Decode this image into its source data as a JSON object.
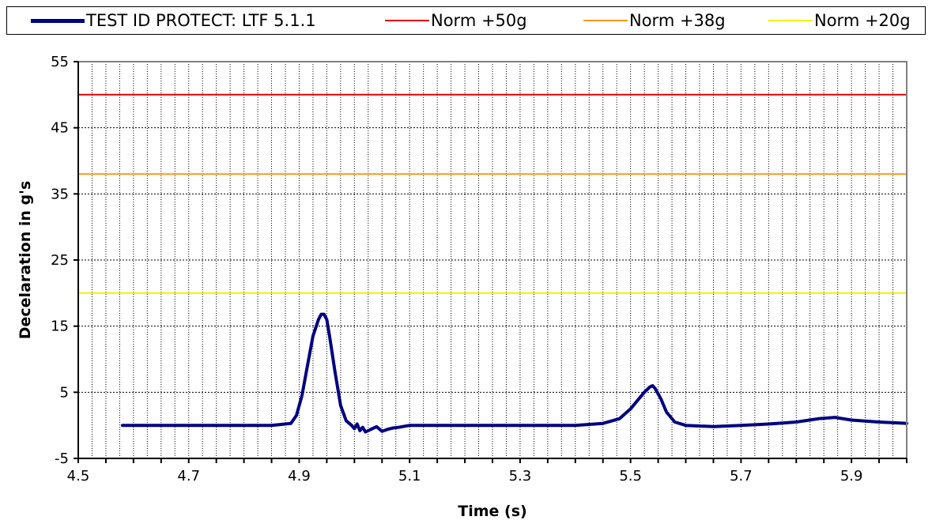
{
  "chart_data": {
    "type": "line",
    "xlabel": "Time (s)",
    "ylabel": "Decelaration in g's",
    "xlim": [
      4.5,
      6.0
    ],
    "ylim": [
      -5,
      55
    ],
    "x_ticks": [
      "4.5",
      "4.7",
      "4.9",
      "5.1",
      "5.3",
      "5.5",
      "5.7",
      "5.9"
    ],
    "x_tick_values": [
      4.5,
      4.7,
      4.9,
      5.1,
      5.3,
      5.5,
      5.7,
      5.9
    ],
    "y_ticks": [
      "-5",
      "5",
      "15",
      "25",
      "35",
      "45",
      "55"
    ],
    "y_tick_values": [
      -5,
      5,
      15,
      25,
      35,
      45,
      55
    ],
    "grid": true,
    "legend_position": "top",
    "series": [
      {
        "name": "TEST ID PROTECT: LTF 5.1.1",
        "color": "#000080",
        "style": "line",
        "x": [
          4.58,
          4.65,
          4.75,
          4.85,
          4.885,
          4.895,
          4.905,
          4.915,
          4.925,
          4.935,
          4.94,
          4.945,
          4.95,
          4.955,
          4.965,
          4.975,
          4.985,
          4.995,
          5.0,
          5.005,
          5.01,
          5.015,
          5.02,
          5.03,
          5.04,
          5.05,
          5.06,
          5.07,
          5.08,
          5.1,
          5.2,
          5.3,
          5.4,
          5.45,
          5.48,
          5.5,
          5.515,
          5.525,
          5.535,
          5.54,
          5.545,
          5.555,
          5.565,
          5.58,
          5.6,
          5.65,
          5.7,
          5.75,
          5.8,
          5.84,
          5.87,
          5.9,
          5.95,
          6.0
        ],
        "values": [
          0.0,
          0.0,
          0.0,
          0.0,
          0.3,
          1.5,
          4.5,
          9.0,
          13.5,
          16.0,
          16.8,
          16.8,
          16.0,
          13.5,
          8.0,
          3.0,
          0.7,
          0.0,
          -0.5,
          0.2,
          -0.8,
          -0.3,
          -1.0,
          -0.6,
          -0.2,
          -0.9,
          -0.6,
          -0.4,
          -0.3,
          0.0,
          0.0,
          0.0,
          0.0,
          0.3,
          1.0,
          2.5,
          4.0,
          5.0,
          5.8,
          6.0,
          5.5,
          4.0,
          2.0,
          0.5,
          0.0,
          -0.2,
          0.0,
          0.2,
          0.5,
          1.0,
          1.2,
          0.8,
          0.5,
          0.3
        ]
      },
      {
        "name": "Norm +50g",
        "color": "#e00000",
        "style": "hline",
        "x": [
          4.5,
          6.0
        ],
        "values": [
          50,
          50
        ]
      },
      {
        "name": "Norm +38g",
        "color": "#f59a1d",
        "style": "hline",
        "x": [
          4.5,
          6.0
        ],
        "values": [
          38,
          38
        ]
      },
      {
        "name": "Norm +20g",
        "color": "#f2f200",
        "style": "hline",
        "x": [
          4.5,
          6.0
        ],
        "values": [
          20,
          20
        ]
      }
    ]
  }
}
